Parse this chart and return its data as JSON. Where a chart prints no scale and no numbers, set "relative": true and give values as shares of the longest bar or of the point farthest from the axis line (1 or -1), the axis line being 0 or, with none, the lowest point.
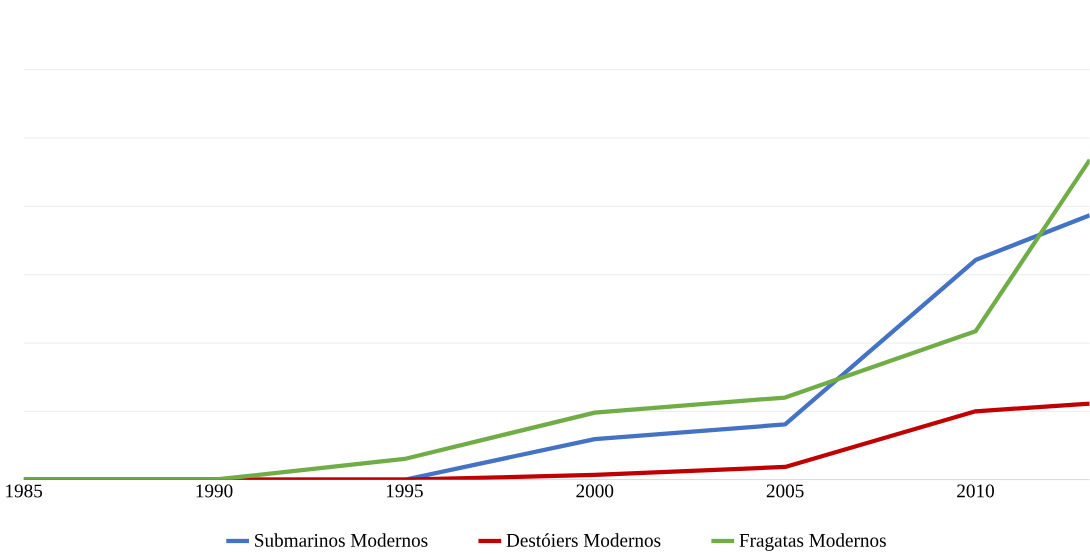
{
  "chart_data": {
    "type": "line",
    "relative": true,
    "x": [
      1985,
      1990,
      1995,
      2000,
      2005,
      2010,
      2013
    ],
    "xlim": [
      1985,
      2013
    ],
    "xticks": [
      1985,
      1990,
      1995,
      2000,
      2005,
      2010
    ],
    "grid": "y",
    "legend": "bottom",
    "marker": "none",
    "line_style": "solid",
    "series": [
      {
        "name": "Submarinos Modernos",
        "color": "#4472c4",
        "values": [
          0,
          0,
          0,
          0.127,
          0.173,
          0.687,
          0.827
        ]
      },
      {
        "name": "Destóiers Modernos",
        "color": "#c00000",
        "values": [
          0,
          0,
          0,
          0.015,
          0.04,
          0.214,
          0.238
        ]
      },
      {
        "name": "Fragatas Modernos",
        "color": "#70ad47",
        "values": [
          0,
          0,
          0.065,
          0.21,
          0.257,
          0.464,
          1.0
        ]
      }
    ]
  }
}
